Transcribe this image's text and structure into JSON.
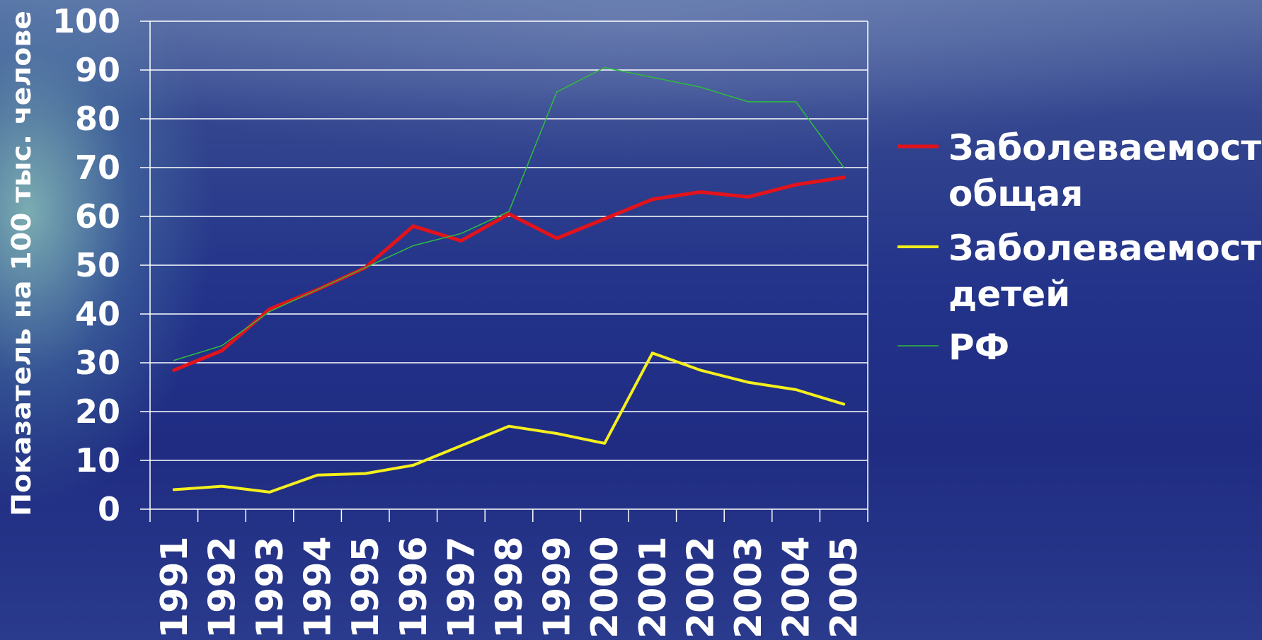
{
  "chart_data": {
    "type": "line",
    "title": "",
    "xlabel": "",
    "ylabel": "Показатель на 100 тыс. челове",
    "ylim": [
      0,
      100
    ],
    "yticks": [
      0,
      10,
      20,
      30,
      40,
      50,
      60,
      70,
      80,
      90,
      100
    ],
    "grid": true,
    "legend_position": "right",
    "categories": [
      "1991",
      "1992",
      "1993",
      "1994",
      "1995",
      "1996",
      "1997",
      "1998",
      "1999",
      "2000",
      "2001",
      "2002",
      "2003",
      "2004",
      "2005"
    ],
    "series": [
      {
        "name": "Заболеваемость общая",
        "legend_lines": [
          "Заболеваемость",
          "общая"
        ],
        "color": "#e3131b",
        "values": [
          28.5,
          32.5,
          41,
          45,
          49.5,
          58,
          55,
          60.5,
          55.5,
          59.5,
          63.5,
          65,
          64,
          66.5,
          68
        ]
      },
      {
        "name": "Заболеваемость детей",
        "legend_lines": [
          "Заболеваемость",
          "детей"
        ],
        "color": "#f5ef1c",
        "values": [
          4,
          4.7,
          3.5,
          7,
          7.3,
          9,
          13,
          17,
          15.5,
          13.5,
          32,
          28.5,
          26,
          24.5,
          21.5
        ]
      },
      {
        "name": "РФ",
        "legend_lines": [
          "РФ"
        ],
        "color": "#2ebd3c",
        "values": [
          30.5,
          33.5,
          40.5,
          45,
          49.5,
          54,
          56.5,
          61,
          85.5,
          90.5,
          88.5,
          86.5,
          83.5,
          83.5,
          70
        ]
      }
    ]
  }
}
